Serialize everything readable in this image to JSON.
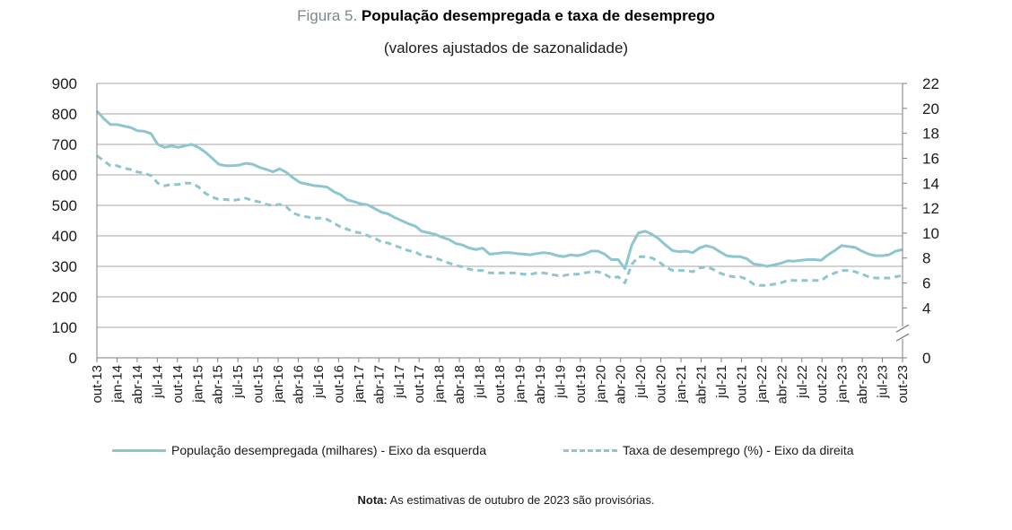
{
  "figure": {
    "prefix": "Figura 5.",
    "title": "População desempregada e taxa de desemprego",
    "subtitle": "(valores ajustados de sazonalidade)"
  },
  "legend": {
    "series1": "População desempregada (milhares) - Eixo da esquerda",
    "series2": "Taxa de desemprego (%) - Eixo da direita"
  },
  "note": {
    "label": "Nota:",
    "text": "As estimativas de outubro de 2023 são provisórias."
  },
  "colors": {
    "line": "#8ec6cf",
    "grid": "#a6a6a6",
    "axis": "#7f7f7f"
  },
  "chart_data": {
    "type": "line",
    "title": "População desempregada e taxa de desemprego",
    "left_axis": {
      "min": 0,
      "max": 900,
      "ticks": [
        0,
        100,
        200,
        300,
        400,
        500,
        600,
        700,
        800,
        900
      ]
    },
    "right_axis": {
      "min": 0,
      "max": 22,
      "ticks": [
        0,
        4,
        6,
        8,
        10,
        12,
        14,
        16,
        18,
        20,
        22
      ],
      "break_between": [
        0,
        4
      ]
    },
    "x_labels": [
      "out-13",
      "jan-14",
      "abr-14",
      "jul-14",
      "out-14",
      "jan-15",
      "abr-15",
      "jul-15",
      "out-15",
      "jan-16",
      "abr-16",
      "jul-16",
      "out-16",
      "jan-17",
      "abr-17",
      "jul-17",
      "out-17",
      "jan-18",
      "abr-18",
      "jul-18",
      "out-18",
      "jan-19",
      "abr-19",
      "jul-19",
      "out-19",
      "jan-20",
      "abr-20",
      "jul-20",
      "out-20",
      "jan-21",
      "abr-21",
      "jul-21",
      "out-21",
      "jan-22",
      "abr-22",
      "jul-22",
      "out-22",
      "jan-23",
      "abr-23",
      "jul-23",
      "out-23"
    ],
    "series": [
      {
        "name": "População desempregada (milhares) - Eixo da esquerda",
        "axis": "left",
        "style": "solid",
        "values": [
          810,
          785,
          765,
          765,
          760,
          755,
          745,
          743,
          735,
          700,
          690,
          695,
          690,
          695,
          700,
          690,
          675,
          655,
          635,
          630,
          630,
          632,
          638,
          635,
          625,
          618,
          610,
          620,
          608,
          590,
          575,
          570,
          565,
          563,
          560,
          545,
          535,
          518,
          512,
          505,
          502,
          490,
          478,
          472,
          460,
          450,
          440,
          432,
          415,
          410,
          405,
          395,
          388,
          375,
          370,
          360,
          355,
          360,
          340,
          342,
          345,
          345,
          342,
          340,
          338,
          342,
          345,
          342,
          335,
          332,
          338,
          335,
          340,
          350,
          350,
          340,
          322,
          322,
          292,
          370,
          410,
          415,
          405,
          390,
          370,
          352,
          348,
          350,
          345,
          360,
          368,
          362,
          348,
          335,
          332,
          332,
          325,
          308,
          305,
          300,
          305,
          310,
          318,
          317,
          320,
          322,
          322,
          320,
          338,
          352,
          368,
          365,
          362,
          350,
          340,
          335,
          335,
          338,
          350,
          355
        ]
      },
      {
        "name": "Taxa de desemprego (%) - Eixo da direita",
        "axis": "right",
        "style": "dashed",
        "values": [
          16.2,
          15.8,
          15.4,
          15.4,
          15.2,
          15.1,
          14.9,
          14.8,
          14.6,
          14.0,
          13.8,
          13.9,
          13.9,
          14.0,
          14.0,
          13.7,
          13.2,
          12.9,
          12.7,
          12.7,
          12.6,
          12.7,
          12.8,
          12.6,
          12.5,
          12.3,
          12.2,
          12.3,
          12.1,
          11.6,
          11.4,
          11.3,
          11.2,
          11.2,
          11.1,
          10.8,
          10.5,
          10.3,
          10.1,
          10.0,
          9.8,
          9.6,
          9.3,
          9.2,
          9.0,
          8.8,
          8.6,
          8.5,
          8.2,
          8.1,
          8.0,
          7.8,
          7.6,
          7.4,
          7.3,
          7.1,
          7.0,
          7.0,
          6.8,
          6.8,
          6.8,
          6.8,
          6.8,
          6.7,
          6.7,
          6.8,
          6.8,
          6.7,
          6.6,
          6.6,
          6.7,
          6.7,
          6.8,
          6.9,
          6.9,
          6.7,
          6.4,
          6.5,
          6.0,
          7.5,
          8.1,
          8.1,
          8.0,
          7.7,
          7.3,
          7.0,
          7.0,
          7.0,
          6.9,
          7.2,
          7.3,
          7.1,
          6.8,
          6.6,
          6.5,
          6.5,
          6.3,
          5.9,
          5.8,
          5.8,
          5.9,
          6.0,
          6.2,
          6.2,
          6.2,
          6.2,
          6.2,
          6.2,
          6.6,
          6.8,
          7.0,
          7.0,
          6.9,
          6.7,
          6.5,
          6.4,
          6.4,
          6.4,
          6.5,
          6.6
        ]
      }
    ]
  }
}
